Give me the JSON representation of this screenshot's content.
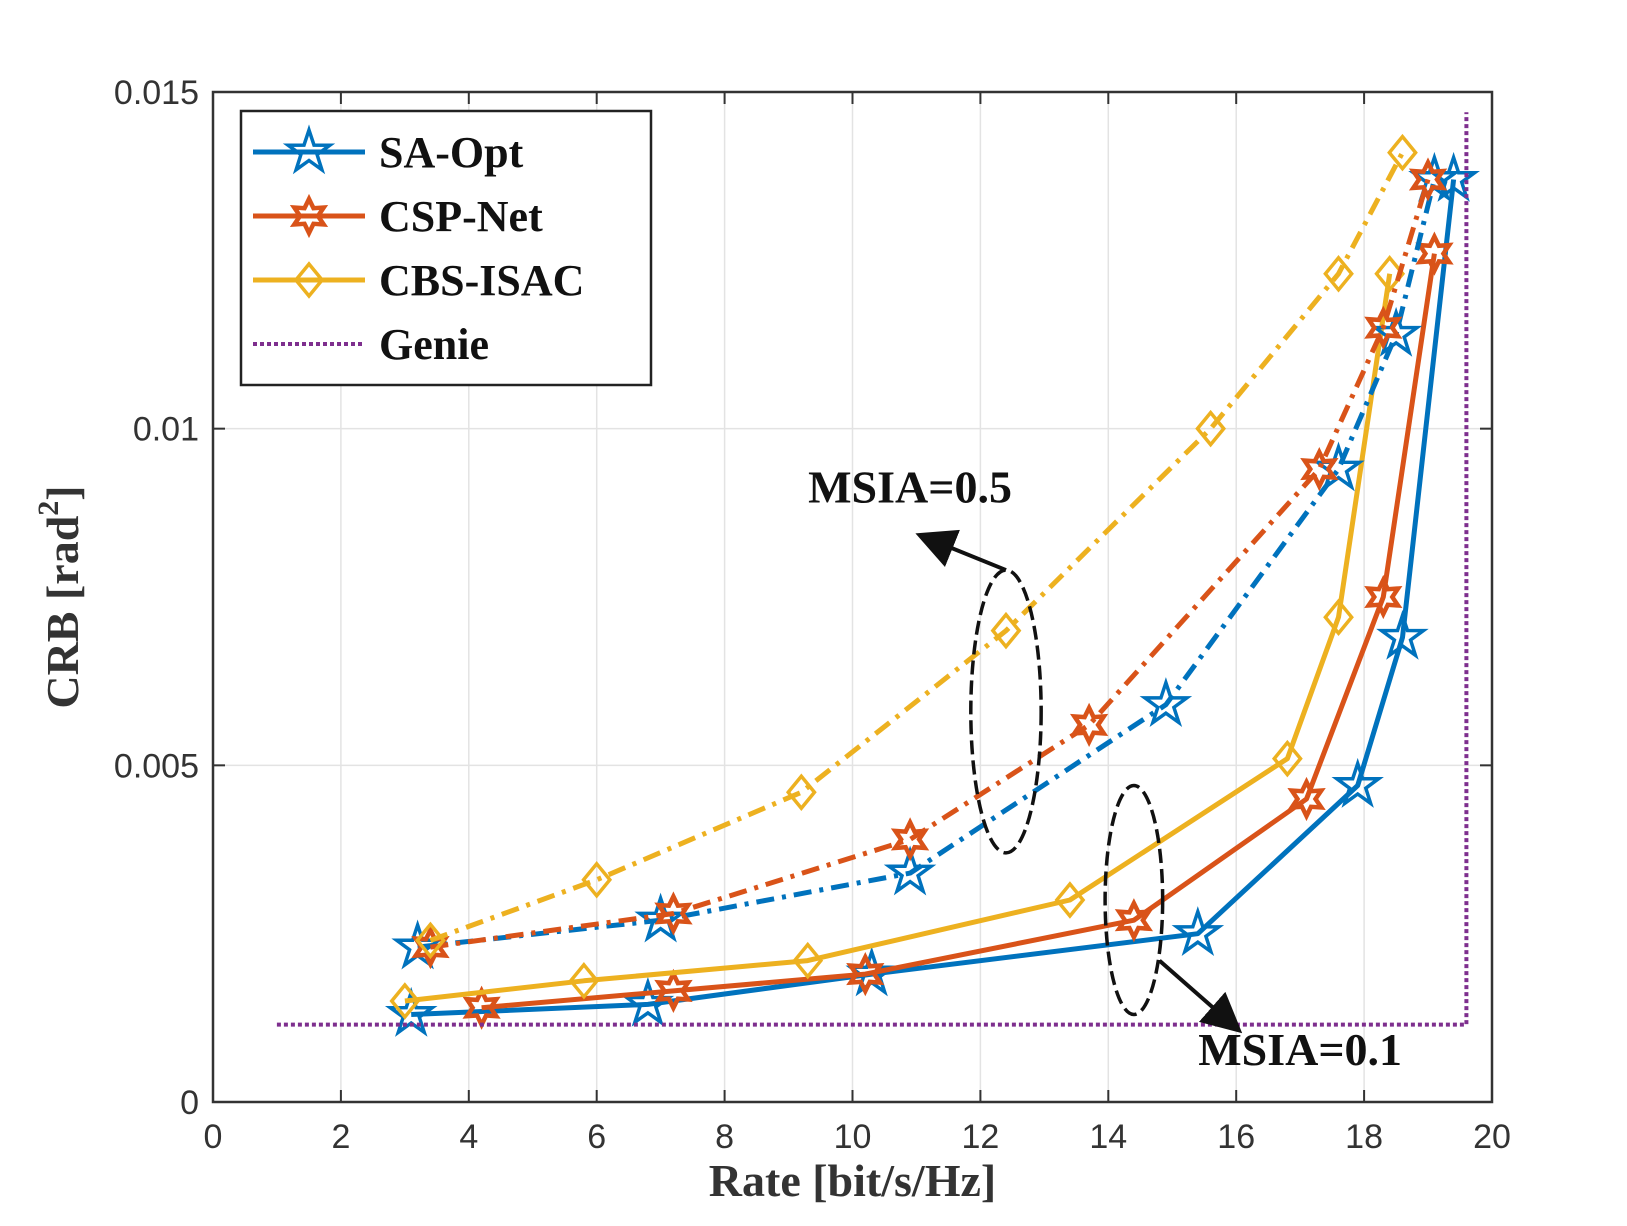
{
  "chart_data": {
    "type": "line",
    "title": "",
    "xlabel": "Rate [bit/s/Hz]",
    "ylabel_main": "CRB [rad",
    "ylabel_sup": "2",
    "ylabel_end": "]",
    "xlim": [
      0,
      20
    ],
    "ylim": [
      0,
      0.015
    ],
    "xticks": [
      0,
      2,
      4,
      6,
      8,
      10,
      12,
      14,
      16,
      18,
      20
    ],
    "yticks": [
      0,
      0.005,
      0.01,
      0.015
    ],
    "xtick_labels": [
      "0",
      "2",
      "4",
      "6",
      "8",
      "10",
      "12",
      "14",
      "16",
      "18",
      "20"
    ],
    "ytick_labels": [
      "0",
      "0.005",
      "0.01",
      "0.015"
    ],
    "grid": true,
    "legend_position": "top-left",
    "legend": [
      {
        "name": "SA-Opt",
        "color": "#0072BD",
        "marker": "star",
        "style": "solid"
      },
      {
        "name": "CSP-Net",
        "color": "#D95319",
        "marker": "hexagram",
        "style": "solid"
      },
      {
        "name": "CBS-ISAC",
        "color": "#EDB120",
        "marker": "diamond",
        "style": "solid"
      },
      {
        "name": "Genie",
        "color": "#7E2F8E",
        "marker": "none",
        "style": "dotted"
      }
    ],
    "series": [
      {
        "name": "SA-Opt",
        "group": "MSIA=0.1",
        "style": "solid",
        "color": "#0072BD",
        "marker": "star",
        "x": [
          3.1,
          6.8,
          10.3,
          15.4,
          17.9,
          18.6,
          19.4
        ],
        "y": [
          0.0013,
          0.00145,
          0.0019,
          0.0025,
          0.0047,
          0.0069,
          0.0137
        ]
      },
      {
        "name": "CSP-Net",
        "group": "MSIA=0.1",
        "style": "solid",
        "color": "#D95319",
        "marker": "hexagram",
        "x": [
          4.2,
          7.2,
          10.2,
          14.4,
          17.1,
          18.3,
          19.1
        ],
        "y": [
          0.0014,
          0.00165,
          0.0019,
          0.0027,
          0.0045,
          0.0075,
          0.0126
        ]
      },
      {
        "name": "CBS-ISAC",
        "group": "MSIA=0.1",
        "style": "solid",
        "color": "#EDB120",
        "marker": "diamond",
        "x": [
          3.0,
          5.8,
          9.3,
          13.4,
          16.8,
          17.6,
          18.4
        ],
        "y": [
          0.0015,
          0.0018,
          0.0021,
          0.003,
          0.0051,
          0.0072,
          0.0123
        ]
      },
      {
        "name": "SA-Opt",
        "group": "MSIA=0.5",
        "style": "dashdot",
        "color": "#0072BD",
        "marker": "star",
        "x": [
          3.2,
          7.0,
          10.9,
          14.9,
          17.6,
          18.5,
          19.1
        ],
        "y": [
          0.0023,
          0.0027,
          0.0034,
          0.0059,
          0.0094,
          0.0114,
          0.0137
        ]
      },
      {
        "name": "CSP-Net",
        "group": "MSIA=0.5",
        "style": "dashdot",
        "color": "#D95319",
        "marker": "hexagram",
        "x": [
          3.4,
          7.2,
          10.9,
          13.7,
          17.3,
          18.3,
          19.0
        ],
        "y": [
          0.0023,
          0.0028,
          0.0039,
          0.0056,
          0.0094,
          0.0115,
          0.0137
        ]
      },
      {
        "name": "CBS-ISAC",
        "group": "MSIA=0.5",
        "style": "dashdot",
        "color": "#EDB120",
        "marker": "diamond",
        "x": [
          3.4,
          6.0,
          9.2,
          12.4,
          15.6,
          17.6,
          18.6
        ],
        "y": [
          0.0024,
          0.0033,
          0.0046,
          0.007,
          0.01,
          0.0123,
          0.0141
        ]
      },
      {
        "name": "Genie",
        "group": "bound",
        "style": "dotted",
        "color": "#7E2F8E",
        "marker": "none",
        "x": [
          1.0,
          19.6,
          19.6
        ],
        "y": [
          0.00115,
          0.00115,
          0.0147
        ]
      }
    ],
    "annotations": [
      {
        "text": "MSIA=0.5",
        "ellipse_center": [
          12.4,
          0.0058
        ],
        "ellipse_radius": [
          0.55,
          0.0021
        ],
        "arrow_from": [
          12.4,
          0.0079
        ],
        "arrow_to": [
          11.1,
          0.0084
        ],
        "text_at": [
          10.9,
          0.0089
        ]
      },
      {
        "text": "MSIA=0.1",
        "ellipse_center": [
          14.4,
          0.003
        ],
        "ellipse_radius": [
          0.45,
          0.0017
        ],
        "arrow_from": [
          14.8,
          0.0021
        ],
        "arrow_to": [
          16.0,
          0.0011
        ],
        "text_at": [
          17.0,
          0.00055
        ]
      }
    ]
  }
}
